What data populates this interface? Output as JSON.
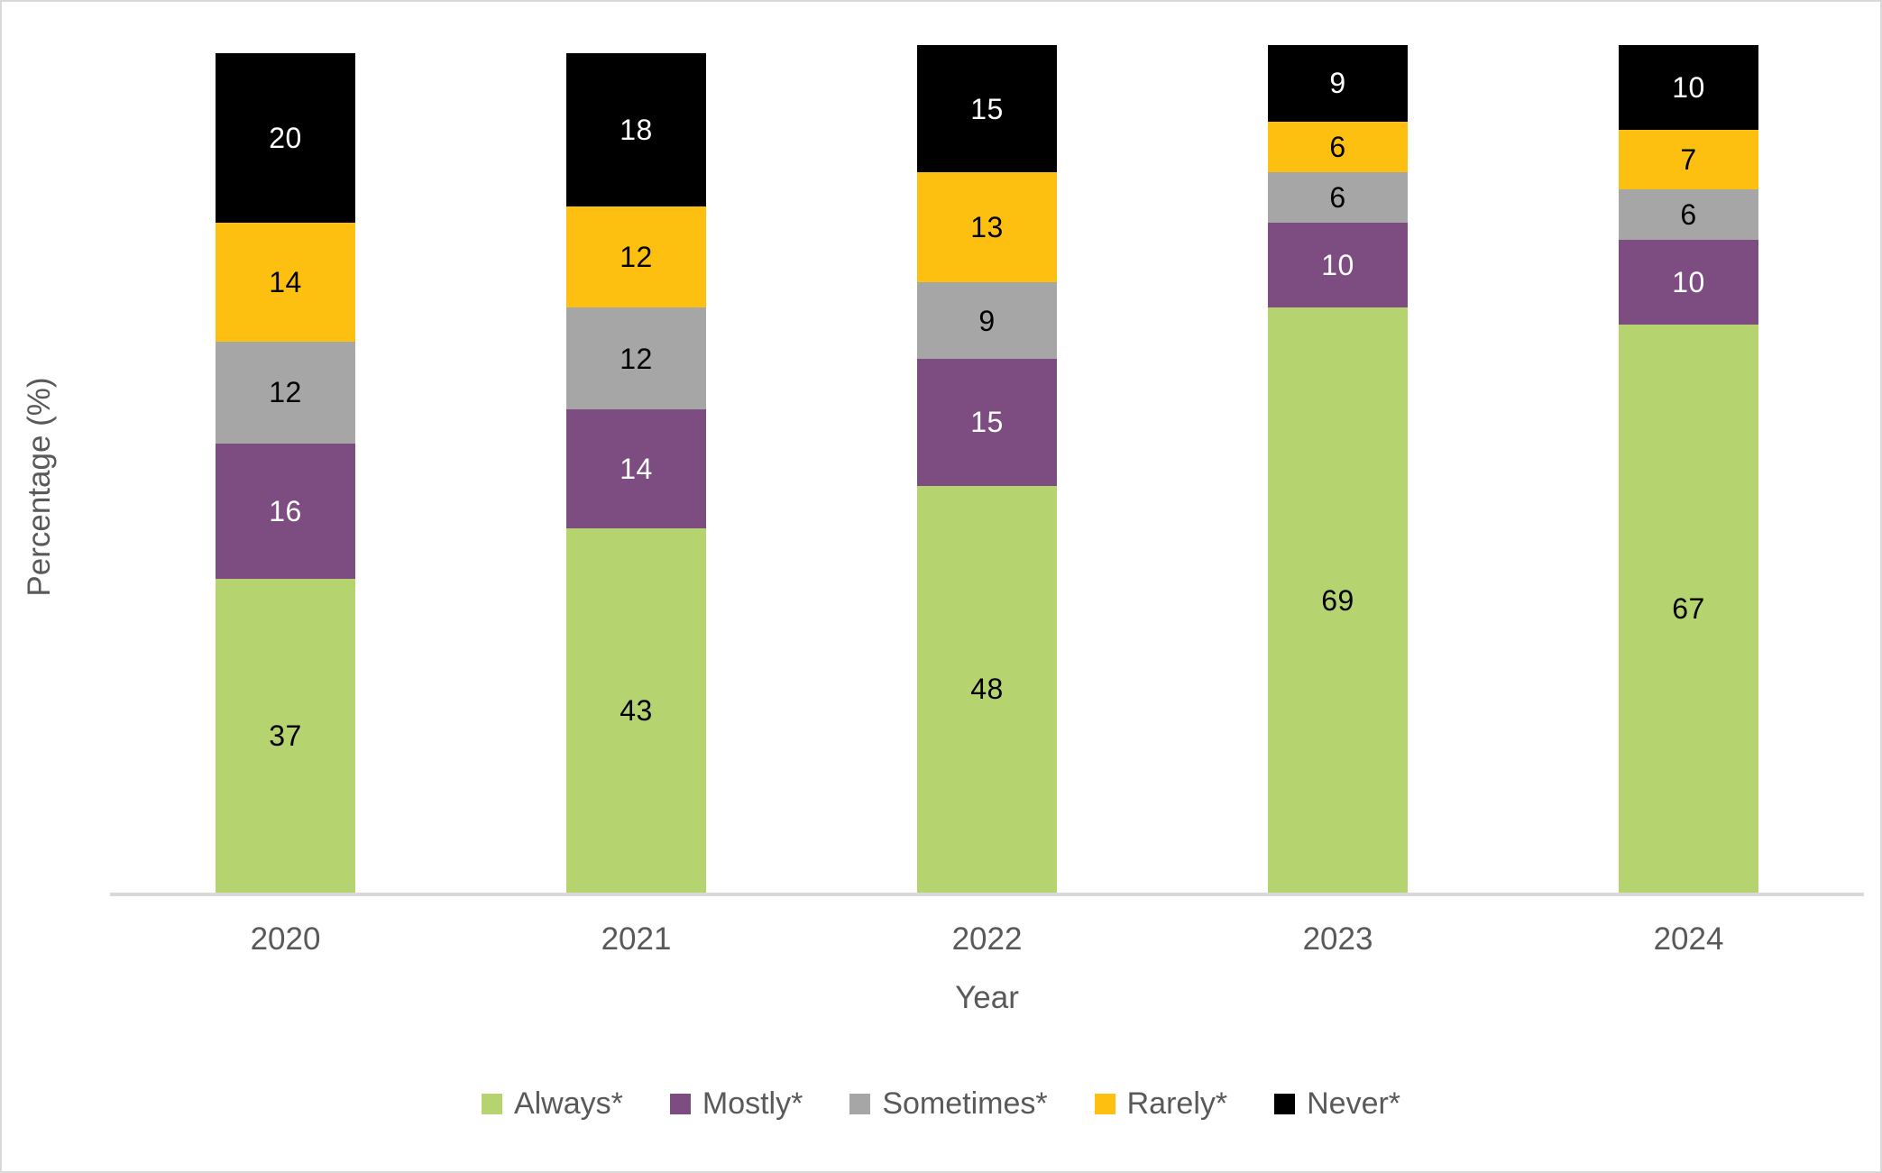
{
  "chart_data": {
    "type": "bar",
    "stacked": true,
    "title": "",
    "categories": [
      "2020",
      "2021",
      "2022",
      "2023",
      "2024"
    ],
    "series": [
      {
        "name": "Always*",
        "color": "#b5d36e",
        "label_color": "#000000",
        "values": [
          37,
          43,
          48,
          69,
          67
        ]
      },
      {
        "name": "Mostly*",
        "color": "#7d4c80",
        "label_color": "#ffffff",
        "values": [
          16,
          14,
          15,
          10,
          10
        ]
      },
      {
        "name": "Sometimes*",
        "color": "#a6a6a6",
        "label_color": "#000000",
        "values": [
          12,
          12,
          9,
          6,
          6
        ]
      },
      {
        "name": "Rarely*",
        "color": "#fdc010",
        "label_color": "#000000",
        "values": [
          14,
          12,
          13,
          6,
          7
        ]
      },
      {
        "name": "Never*",
        "color": "#000000",
        "label_color": "#ffffff",
        "values": [
          20,
          18,
          15,
          9,
          10
        ]
      }
    ],
    "xlabel": "Year",
    "ylabel": "Percentage (%)",
    "ylim": [
      0,
      100
    ],
    "grid": false,
    "legend_position": "bottom",
    "data_labels": "center",
    "colors": {
      "axis_line": "#d9d9d9",
      "axis_text": "#595959",
      "canvas_border": "#d9d9d9",
      "background": "#ffffff"
    }
  }
}
